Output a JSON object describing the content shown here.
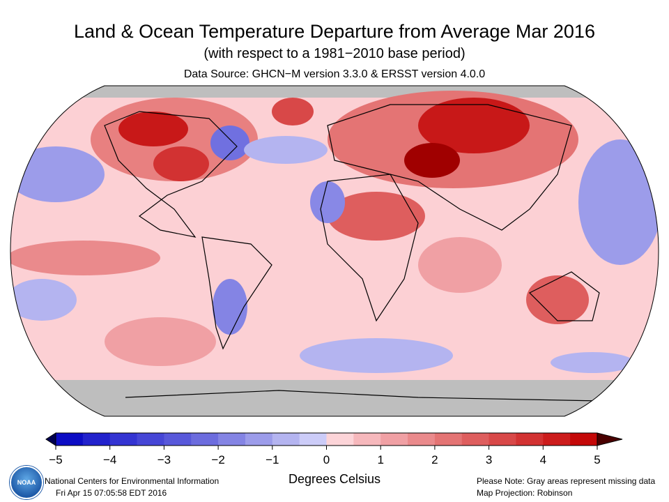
{
  "header": {
    "title": "Land & Ocean Temperature Departure from Average Mar 2016",
    "subtitle": "(with respect to a 1981−2010 base period)",
    "source": "Data Source: GHCN−M version 3.3.0 & ERSST version 4.0.0"
  },
  "map": {
    "projection_label": "Map Projection: Robinson",
    "missing_color": "#bebebe"
  },
  "legend": {
    "unit": "Degrees Celsius",
    "range": [
      -5,
      5
    ],
    "step": 0.5,
    "ticks": [
      "−5",
      "−4",
      "−3",
      "−2",
      "−1",
      "0",
      "1",
      "2",
      "3",
      "4",
      "5"
    ],
    "colors": [
      "#0c0cc4",
      "#2222cc",
      "#3434d2",
      "#4646d6",
      "#5858da",
      "#6c6cde",
      "#8484e4",
      "#9c9cea",
      "#b4b4f0",
      "#ccccf8",
      "#fcd4d8",
      "#f6b8bc",
      "#f0a0a4",
      "#ea8a8c",
      "#e47474",
      "#de5e5e",
      "#d84848",
      "#d23232",
      "#cc1c1c",
      "#c40808"
    ],
    "under_color": "#000050",
    "over_color": "#4a0000"
  },
  "footer": {
    "logo_text": "NOAA",
    "org": "National Centers for Environmental Information",
    "timestamp": "Fri Apr 15 07:05:58 EDT 2016",
    "note": "Please Note: Gray areas represent missing data",
    "projection": "Map Projection: Robinson"
  }
}
